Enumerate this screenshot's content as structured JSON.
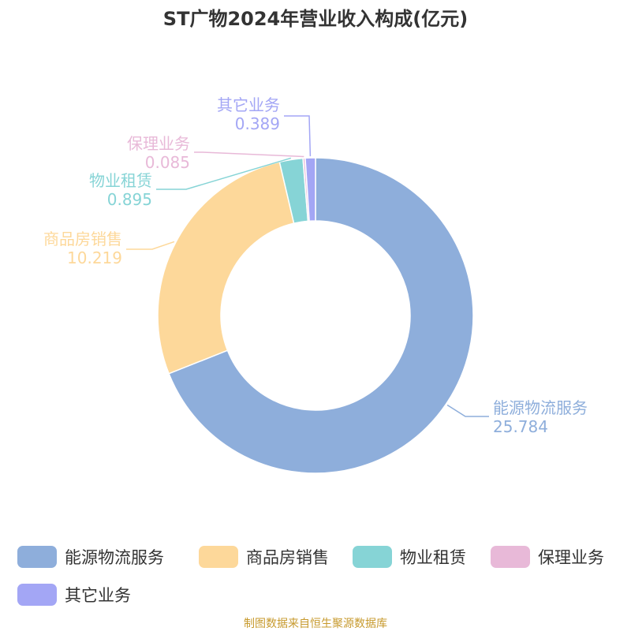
{
  "chart_data": {
    "type": "pie",
    "donut": true,
    "title": "ST广物2024年营业收入构成(亿元)",
    "series": [
      {
        "name": "能源物流服务",
        "value": 25.784,
        "label": "25.784",
        "color": "#8eaedb"
      },
      {
        "name": "商品房销售",
        "value": 10.219,
        "label": "10.219",
        "color": "#fdd89a"
      },
      {
        "name": "物业租赁",
        "value": 0.895,
        "label": "0.895",
        "color": "#86d4d6"
      },
      {
        "name": "保理业务",
        "value": 0.085,
        "label": "0.085",
        "color": "#e8b9d8"
      },
      {
        "name": "其它业务",
        "value": 0.389,
        "label": "0.389",
        "color": "#a3a6f5"
      }
    ],
    "legend_position": "bottom",
    "source": "制图数据来自恒生聚源数据库"
  }
}
